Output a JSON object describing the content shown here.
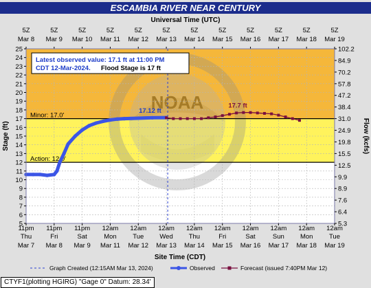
{
  "title": "ESCAMBIA RIVER NEAR CENTURY",
  "top_axis": {
    "label": "Universal Time (UTC)",
    "ticks": [
      {
        "hour": "5Z",
        "date": "Mar 8"
      },
      {
        "hour": "5Z",
        "date": "Mar 9"
      },
      {
        "hour": "5Z",
        "date": "Mar 10"
      },
      {
        "hour": "5Z",
        "date": "Mar 11"
      },
      {
        "hour": "5Z",
        "date": "Mar 12"
      },
      {
        "hour": "5Z",
        "date": "Mar 13"
      },
      {
        "hour": "5Z",
        "date": "Mar 14"
      },
      {
        "hour": "5Z",
        "date": "Mar 15"
      },
      {
        "hour": "5Z",
        "date": "Mar 16"
      },
      {
        "hour": "5Z",
        "date": "Mar 17"
      },
      {
        "hour": "5Z",
        "date": "Mar 18"
      },
      {
        "hour": "5Z",
        "date": "Mar 19"
      }
    ]
  },
  "bottom_axis": {
    "label": "Site Time (CDT)",
    "ticks": [
      {
        "time": "11pm",
        "day": "Thu",
        "date": "Mar 7"
      },
      {
        "time": "11pm",
        "day": "Fri",
        "date": "Mar 8"
      },
      {
        "time": "11pm",
        "day": "Sat",
        "date": "Mar 9"
      },
      {
        "time": "12am",
        "day": "Mon",
        "date": "Mar 11"
      },
      {
        "time": "12am",
        "day": "Tue",
        "date": "Mar 12"
      },
      {
        "time": "12am",
        "day": "Wed",
        "date": "Mar 13"
      },
      {
        "time": "12am",
        "day": "Thu",
        "date": "Mar 14"
      },
      {
        "time": "12am",
        "day": "Fri",
        "date": "Mar 15"
      },
      {
        "time": "12am",
        "day": "Sat",
        "date": "Mar 16"
      },
      {
        "time": "12am",
        "day": "Sun",
        "date": "Mar 17"
      },
      {
        "time": "12am",
        "day": "Mon",
        "date": "Mar 18"
      },
      {
        "time": "12am",
        "day": "Tue",
        "date": "Mar 19"
      }
    ]
  },
  "left_axis": {
    "label": "Stage (ft)",
    "ticks": [
      25,
      24,
      23,
      22,
      21,
      20,
      19,
      18,
      17,
      16,
      15,
      14,
      13,
      12,
      11,
      10,
      9,
      8,
      7,
      6,
      5
    ]
  },
  "right_axis": {
    "label": "Flow (kcfs)",
    "ticks": [
      "102.2",
      "84.9",
      "70.2",
      "57.8",
      "47.2",
      "38.4",
      "31.0",
      "24.9",
      "19.8",
      "15.5",
      "12.5",
      "9.9",
      "8.9",
      "7.6",
      "6.4",
      "5.3"
    ]
  },
  "annotation": {
    "line1": "Latest observed value: 17.1 ft at 11:00 PM",
    "line2a": "CDT 12-Mar-2024.",
    "line2b": "Flood Stage is 17 ft"
  },
  "observed_peak_label": "17.12 ft",
  "forecast_peak_label": "17.7 ft",
  "minor_label": "Minor: 17.0'",
  "action_label": "Action: 12.0'",
  "legend": {
    "created": "Graph Created (12:15AM Mar 13, 2024)",
    "observed": "Observed",
    "forecast": "Forecast (issued 7:40PM Mar 12)"
  },
  "gage_info": "CTYF1(plotting HGIRG) \"Gage 0\" Datum: 28.34'",
  "colors": {
    "title_bar": "#1c2d8c",
    "plot_border": "#7a78a8",
    "moderate_zone": "#f5b73a",
    "minor_zone": "#fff35c",
    "action_zone": "#ffffff",
    "observed": "#3b55e6",
    "forecast": "#7a1040",
    "created_line": "#2a3fd0"
  },
  "chart_data": {
    "type": "line",
    "title": "ESCAMBIA RIVER NEAR CENTURY",
    "xlabel": "Site Time (CDT)",
    "ylabel": "Stage (ft)",
    "y2label": "Flow (kcfs)",
    "ylim": [
      5,
      25
    ],
    "x_unit": "days from 11pm CDT Mar 7, 2024",
    "xlim": [
      0,
      11
    ],
    "thresholds": [
      {
        "name": "Minor",
        "stage": 17.0
      },
      {
        "name": "Action",
        "stage": 12.0
      }
    ],
    "series": [
      {
        "name": "Observed",
        "x": [
          0.0,
          0.25,
          0.5,
          0.75,
          1.0,
          1.1,
          1.2,
          1.35,
          1.5,
          1.75,
          2.0,
          2.25,
          2.5,
          2.75,
          3.0,
          3.25,
          3.5,
          4.0,
          4.5,
          5.0
        ],
        "y": [
          10.6,
          10.6,
          10.6,
          10.5,
          10.6,
          11.0,
          12.0,
          13.0,
          14.1,
          15.0,
          15.7,
          16.2,
          16.5,
          16.7,
          16.85,
          16.95,
          17.0,
          17.05,
          17.1,
          17.12
        ]
      },
      {
        "name": "Forecast (issued 7:40PM Mar 12)",
        "x": [
          5.0,
          5.25,
          5.5,
          5.75,
          6.0,
          6.25,
          6.5,
          6.75,
          7.0,
          7.25,
          7.5,
          7.75,
          8.0,
          8.25,
          8.5,
          8.75,
          9.0,
          9.25,
          9.5,
          9.75
        ],
        "y": [
          17.1,
          17.0,
          17.0,
          17.0,
          17.0,
          17.0,
          17.1,
          17.2,
          17.35,
          17.5,
          17.65,
          17.7,
          17.7,
          17.65,
          17.6,
          17.55,
          17.4,
          17.2,
          17.0,
          16.8
        ]
      }
    ],
    "graph_created_x": 5.05
  }
}
